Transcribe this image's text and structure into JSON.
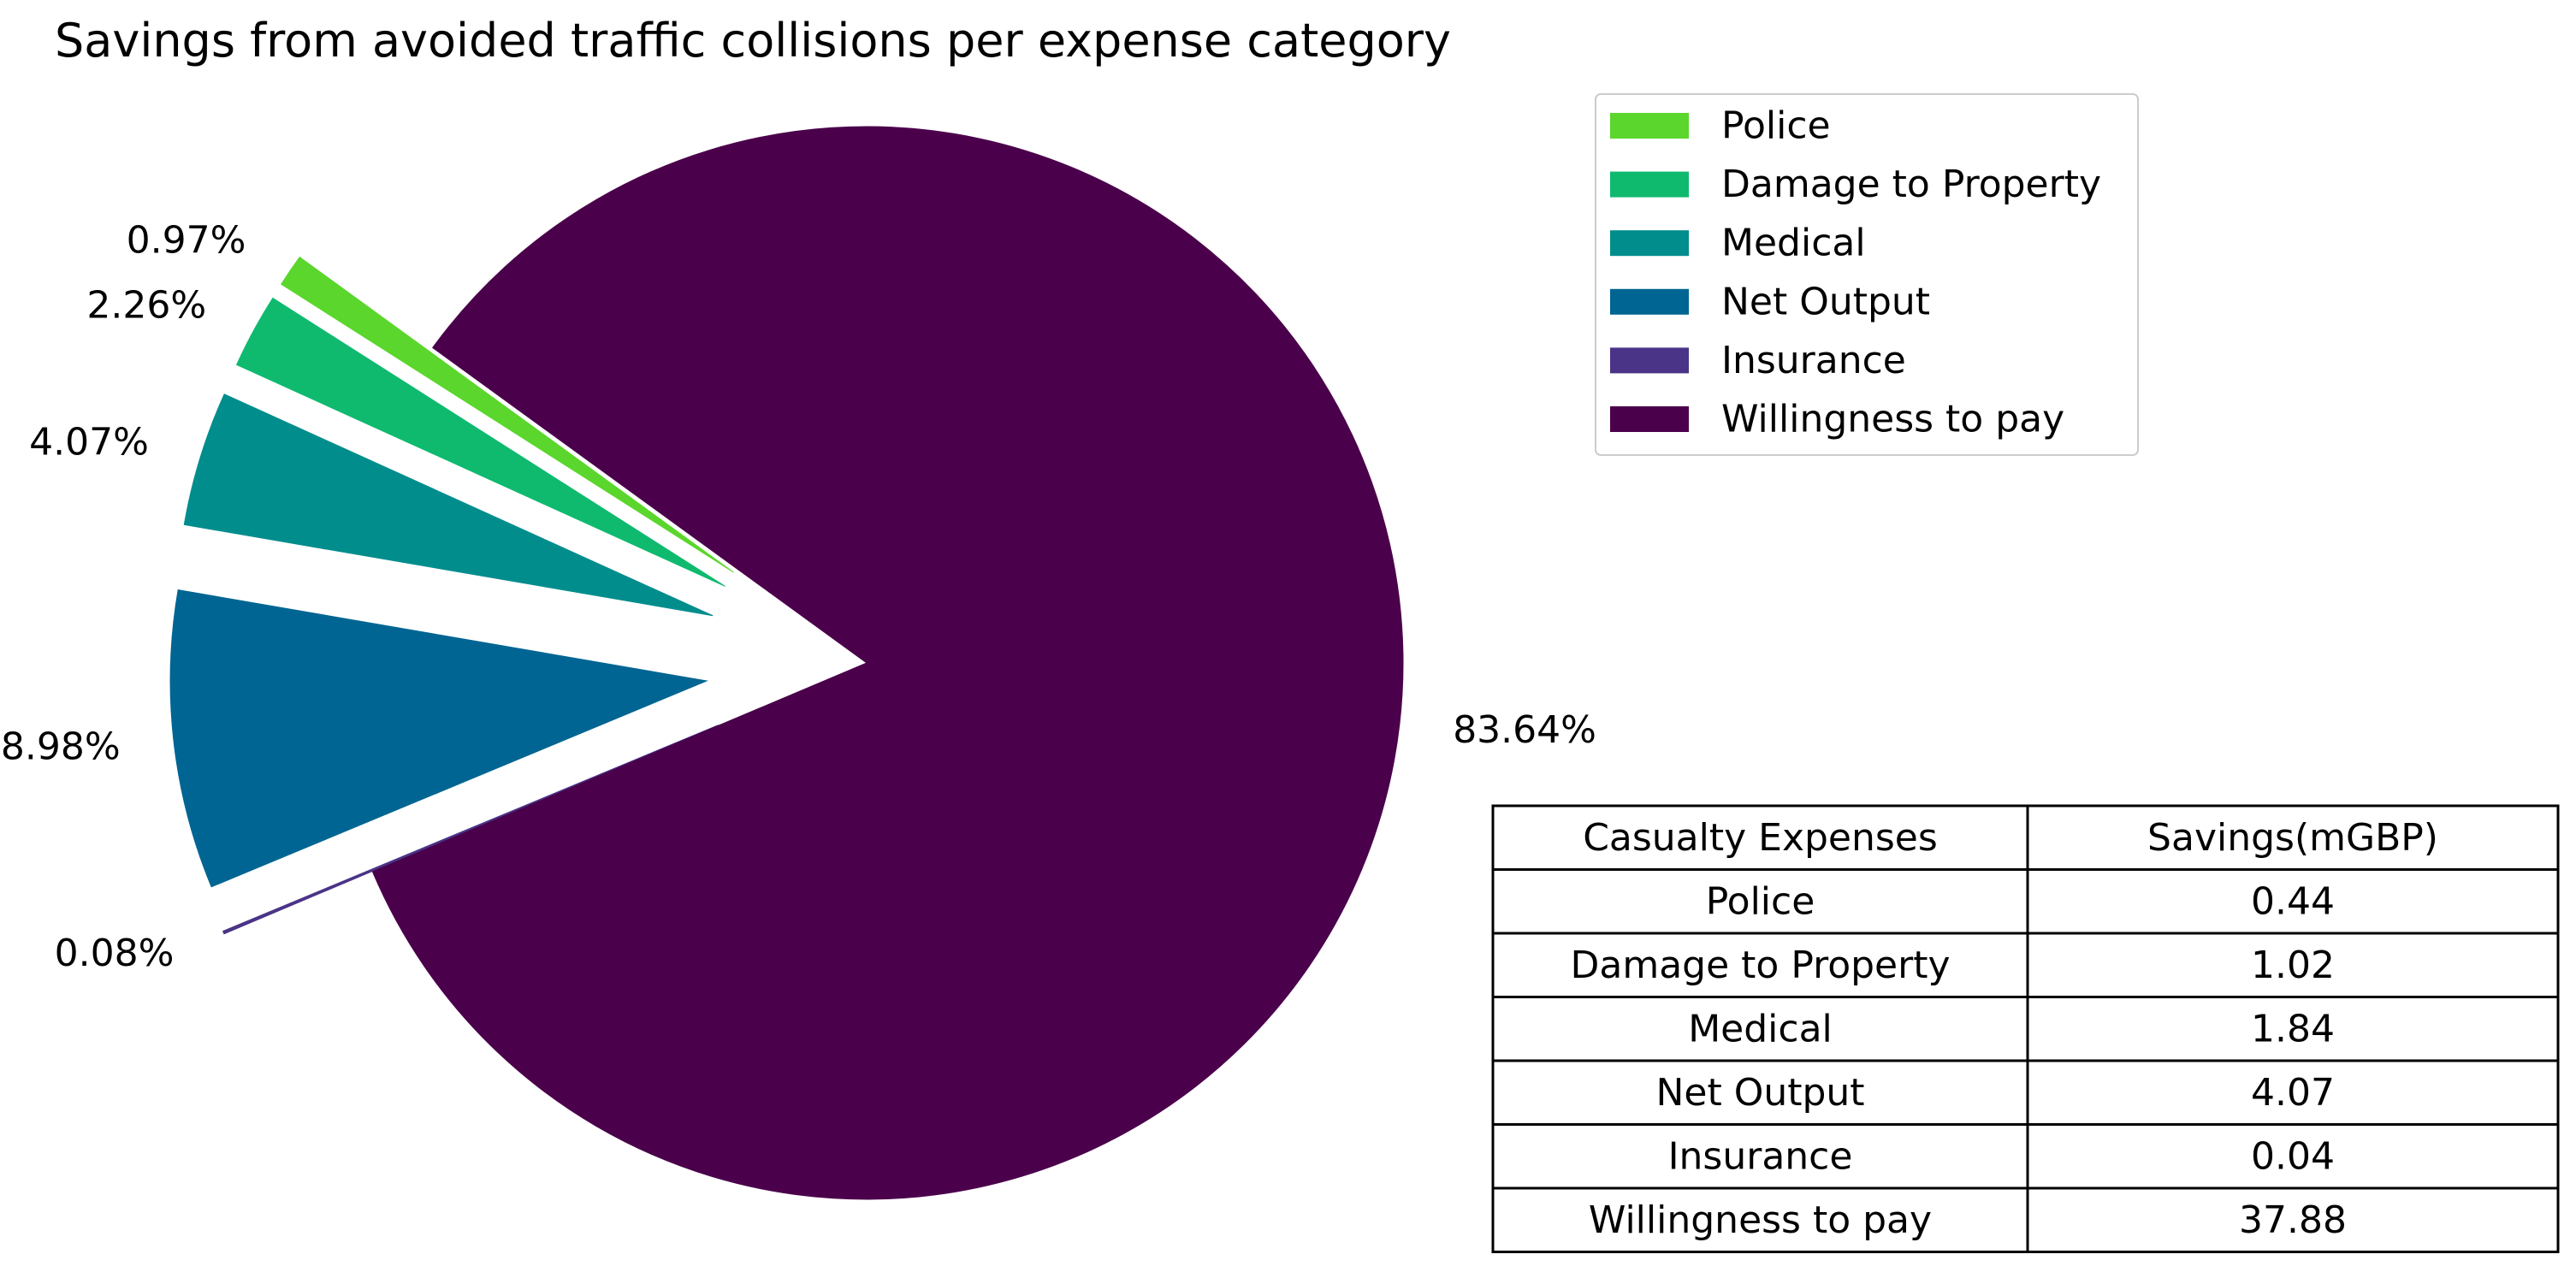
{
  "chart_data": {
    "type": "pie",
    "title": "Savings from avoided traffic collisions per expense category",
    "categories": [
      "Police",
      "Damage to Property",
      "Medical",
      "Net Output",
      "Insurance",
      "Willingness to pay"
    ],
    "values": [
      0.44,
      1.02,
      1.84,
      4.07,
      0.04,
      37.88
    ],
    "percent_labels": [
      "0.97%",
      "2.26%",
      "4.07%",
      "8.98%",
      "0.08%",
      "83.64%"
    ],
    "colors": [
      "#5bd62c",
      "#0fba6f",
      "#028d8d",
      "#006592",
      "#4a3487",
      "#4b004b"
    ],
    "legend": {
      "placement": "top-right",
      "entries": [
        "Police",
        "Damage to Property",
        "Medical",
        "Net Output",
        "Insurance",
        "Willingness to pay"
      ]
    },
    "table": {
      "headers": [
        "Casualty Expenses",
        "Savings(mGBP)"
      ],
      "rows": [
        [
          "Police",
          "0.44"
        ],
        [
          "Damage to Property",
          "1.02"
        ],
        [
          "Medical",
          "1.84"
        ],
        [
          "Net Output",
          "4.07"
        ],
        [
          "Insurance",
          "0.04"
        ],
        [
          "Willingness to pay",
          "37.88"
        ]
      ]
    }
  }
}
